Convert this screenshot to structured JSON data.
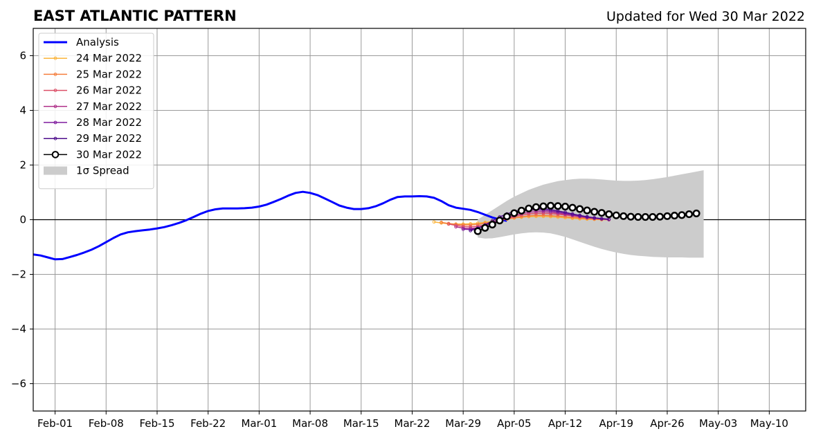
{
  "header": {
    "title": "EAST ATLANTIC PATTERN",
    "updated": "Updated for Wed 30 Mar 2022"
  },
  "chart_data": {
    "type": "line",
    "title": "EAST ATLANTIC PATTERN",
    "subtitle": "Updated for Wed 30 Mar 2022",
    "xlabel": "",
    "ylabel": "",
    "xlim": [
      "2022-01-29",
      "2022-05-15"
    ],
    "ylim": [
      -7,
      7
    ],
    "grid": true,
    "legend_position": "top-left",
    "x_ticks": [
      "2022-02-01",
      "2022-02-08",
      "2022-02-15",
      "2022-02-22",
      "2022-03-01",
      "2022-03-08",
      "2022-03-15",
      "2022-03-22",
      "2022-03-29",
      "2022-04-05",
      "2022-04-12",
      "2022-04-19",
      "2022-04-26",
      "2022-05-03",
      "2022-05-10"
    ],
    "x_tick_labels": [
      "Feb-01",
      "Feb-08",
      "Feb-15",
      "Feb-22",
      "Mar-01",
      "Mar-08",
      "Mar-15",
      "Mar-22",
      "Mar-29",
      "Apr-05",
      "Apr-12",
      "Apr-19",
      "Apr-26",
      "May-03",
      "May-10"
    ],
    "y_ticks": [
      -6,
      -4,
      -2,
      0,
      2,
      4,
      6
    ],
    "y_tick_labels": [
      "−6",
      "−4",
      "−2",
      "0",
      "2",
      "4",
      "6"
    ],
    "analysis": {
      "name": "Analysis",
      "color": "#0000ff",
      "start_date": "2022-01-29",
      "values": [
        -1.27,
        -1.31,
        -1.38,
        -1.45,
        -1.44,
        -1.37,
        -1.29,
        -1.2,
        -1.1,
        -0.97,
        -0.82,
        -0.67,
        -0.54,
        -0.46,
        -0.42,
        -0.39,
        -0.36,
        -0.32,
        -0.27,
        -0.2,
        -0.12,
        -0.02,
        0.1,
        0.22,
        0.32,
        0.38,
        0.41,
        0.41,
        0.41,
        0.42,
        0.44,
        0.48,
        0.55,
        0.65,
        0.76,
        0.88,
        0.98,
        1.02,
        0.98,
        0.9,
        0.78,
        0.65,
        0.52,
        0.44,
        0.39,
        0.39,
        0.42,
        0.49,
        0.6,
        0.73,
        0.83,
        0.85,
        0.85,
        0.86,
        0.85,
        0.8,
        0.68,
        0.53,
        0.44,
        0.4,
        0.36,
        0.28,
        0.18,
        0.08,
        0.01,
        -0.04
      ]
    },
    "forecasts": [
      {
        "name": "24 Mar 2022",
        "color": "#fbb43a",
        "start_date": "2022-03-25",
        "values": [
          -0.08,
          -0.12,
          -0.15,
          -0.16,
          -0.16,
          -0.15,
          -0.13,
          -0.1,
          -0.06,
          -0.02,
          0.02,
          0.06,
          0.09,
          0.11,
          0.12,
          0.12,
          0.11,
          0.09,
          0.07,
          0.05,
          0.03,
          0.02,
          0.01,
          0.0,
          0.0
        ]
      },
      {
        "name": "25 Mar 2022",
        "color": "#f57e3c",
        "start_date": "2022-03-26",
        "values": [
          -0.1,
          -0.14,
          -0.17,
          -0.19,
          -0.19,
          -0.17,
          -0.13,
          -0.08,
          -0.03,
          0.02,
          0.07,
          0.11,
          0.14,
          0.16,
          0.16,
          0.15,
          0.13,
          0.11,
          0.08,
          0.06,
          0.04,
          0.02,
          0.01,
          0.0
        ]
      },
      {
        "name": "26 Mar 2022",
        "color": "#dc4f67",
        "start_date": "2022-03-27",
        "values": [
          -0.16,
          -0.21,
          -0.25,
          -0.26,
          -0.24,
          -0.19,
          -0.12,
          -0.04,
          0.04,
          0.11,
          0.17,
          0.21,
          0.23,
          0.23,
          0.22,
          0.2,
          0.17,
          0.14,
          0.1,
          0.07,
          0.05,
          0.03,
          0.01
        ]
      },
      {
        "name": "27 Mar 2022",
        "color": "#b0318a",
        "start_date": "2022-03-28",
        "values": [
          -0.26,
          -0.31,
          -0.32,
          -0.29,
          -0.22,
          -0.13,
          -0.03,
          0.07,
          0.15,
          0.22,
          0.27,
          0.29,
          0.29,
          0.27,
          0.24,
          0.2,
          0.16,
          0.12,
          0.08,
          0.05,
          0.02,
          0.0
        ]
      },
      {
        "name": "28 Mar 2022",
        "color": "#7f1a9e",
        "start_date": "2022-03-29",
        "values": [
          -0.35,
          -0.36,
          -0.31,
          -0.22,
          -0.1,
          0.03,
          0.14,
          0.24,
          0.31,
          0.35,
          0.36,
          0.35,
          0.32,
          0.28,
          0.23,
          0.18,
          0.13,
          0.09,
          0.06,
          0.03,
          0.01
        ]
      },
      {
        "name": "29 Mar 2022",
        "color": "#4c0b8b",
        "start_date": "2022-03-30",
        "values": [
          -0.4,
          -0.32,
          -0.19,
          -0.04,
          0.1,
          0.21,
          0.3,
          0.36,
          0.4,
          0.41,
          0.4,
          0.37,
          0.32,
          0.27,
          0.21,
          0.16,
          0.11,
          0.07,
          0.04,
          0.02
        ]
      }
    ],
    "current": {
      "name": "30 Mar 2022",
      "color": "#000000",
      "start_date": "2022-03-31",
      "values": [
        -0.42,
        -0.3,
        -0.18,
        -0.03,
        0.12,
        0.24,
        0.33,
        0.41,
        0.46,
        0.49,
        0.51,
        0.5,
        0.48,
        0.44,
        0.39,
        0.34,
        0.29,
        0.25,
        0.2,
        0.16,
        0.13,
        0.11,
        0.1,
        0.1,
        0.1,
        0.11,
        0.13,
        0.15,
        0.17,
        0.2,
        0.23
      ]
    },
    "spread": {
      "name": "1σ Spread",
      "color": "#cccccc",
      "start_date": "2022-03-31",
      "upper": [
        0.0,
        0.18,
        0.35,
        0.52,
        0.69,
        0.84,
        0.97,
        1.09,
        1.19,
        1.28,
        1.35,
        1.41,
        1.45,
        1.48,
        1.5,
        1.5,
        1.49,
        1.47,
        1.45,
        1.43,
        1.42,
        1.42,
        1.43,
        1.45,
        1.48,
        1.52,
        1.56,
        1.61,
        1.66,
        1.71,
        1.76,
        1.81
      ],
      "lower": [
        -0.65,
        -0.69,
        -0.68,
        -0.64,
        -0.59,
        -0.54,
        -0.5,
        -0.47,
        -0.46,
        -0.47,
        -0.5,
        -0.56,
        -0.63,
        -0.72,
        -0.81,
        -0.9,
        -0.99,
        -1.07,
        -1.14,
        -1.2,
        -1.25,
        -1.29,
        -1.32,
        -1.34,
        -1.36,
        -1.37,
        -1.38,
        -1.38,
        -1.38,
        -1.39,
        -1.39,
        -1.39
      ]
    },
    "legend": [
      {
        "label": "Analysis",
        "color": "#0000ff",
        "style": "thick-line"
      },
      {
        "label": "24 Mar 2022",
        "color": "#fbb43a",
        "style": "marker-line"
      },
      {
        "label": "25 Mar 2022",
        "color": "#f57e3c",
        "style": "marker-line"
      },
      {
        "label": "26 Mar 2022",
        "color": "#dc4f67",
        "style": "marker-line"
      },
      {
        "label": "27 Mar 2022",
        "color": "#b0318a",
        "style": "marker-line"
      },
      {
        "label": "28 Mar 2022",
        "color": "#7f1a9e",
        "style": "marker-line"
      },
      {
        "label": "29 Mar 2022",
        "color": "#4c0b8b",
        "style": "marker-line"
      },
      {
        "label": "30 Mar 2022",
        "color": "#000000",
        "style": "circle-line"
      },
      {
        "label": "1σ Spread",
        "color": "#cccccc",
        "style": "patch"
      }
    ]
  }
}
